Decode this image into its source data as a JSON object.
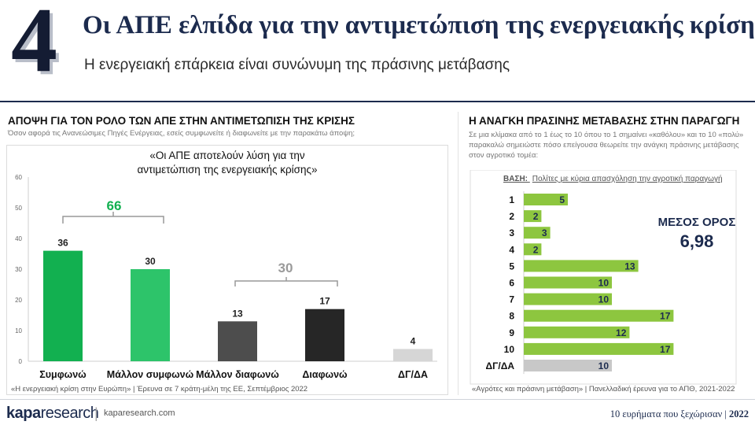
{
  "header": {
    "number": "4",
    "title": "Οι ΑΠΕ ελπίδα για την αντιμετώπιση της ενεργειακής κρίσης",
    "subtitle": "Η ενεργειακή επάρκεια είναι συνώνυμη της πράσινης μετάβασης"
  },
  "left": {
    "title": "ΑΠΟΨΗ ΓΙΑ ΤΟΝ ΡΟΛΟ ΤΩΝ ΑΠΕ ΣΤΗΝ ΑΝΤΙΜΕΤΩΠΙΣΗ ΤΗΣ ΚΡΙΣΗΣ",
    "subtitle": "Όσον αφορά τις Ανανεώσιμες Πηγές Ενέργειας, εσείς συμφωνείτε ή διαφωνείτε με την παρακάτω άποψη;",
    "quote_line1": "«Οι ΑΠΕ αποτελούν λύση για την",
    "quote_line2": "αντιμετώπιση της ενεργειακής κρίσης»",
    "source": "«Η ενεργειακή κρίση στην Ευρώπη» | Έρευνα σε 7 κράτη-μέλη της ΕΕ, Σεπτέμβριος 2022",
    "group_agree_total": "66",
    "group_disagree_total": "30"
  },
  "right": {
    "title": "Η ΑΝΑΓΚΗ ΠΡΑΣΙΝΗΣ ΜΕΤΑΒΑΣΗΣ ΣΤΗΝ ΠΑΡΑΓΩΓΗ",
    "subtitle": "Σε μια κλίμακα από το 1 έως το 10 όπου το 1 σημαίνει «καθόλου» και το 10 «πολύ» παρακαλώ σημειώστε πόσο επείγουσα θεωρείτε την ανάγκη πράσινης μετάβασης στον αγροτικό τομέα:",
    "base_label": "ΒΑΣΗ:",
    "base_text": "Πολίτες με κύρια απασχόληση την αγροτική παραγωγή",
    "mean_label": "ΜΕΣΟΣ ΟΡΟΣ",
    "mean_value": "6,98",
    "source": "«Αγρότες και πράσινη μετάβαση» | Πανελλαδική έρευνα για το ΑΠΘ, 2021-2022"
  },
  "footer": {
    "logo_bold": "kapa",
    "logo_light": "research",
    "separator": "|",
    "url": "kaparesearch.com",
    "tagline": "10 ευρήματα που ξεχώρισαν |",
    "year": "2022"
  },
  "chart_data": [
    {
      "type": "bar",
      "categories": [
        "Συμφωνώ",
        "Μάλλον συμφωνώ",
        "Μάλλον διαφωνώ",
        "Διαφωνώ",
        "ΔΓ/ΔΑ"
      ],
      "values": [
        36,
        30,
        13,
        17,
        4
      ],
      "colors": [
        "#12b050",
        "#2dc46a",
        "#4d4d4d",
        "#262626",
        "#d6d6d6"
      ],
      "ylim": [
        0,
        60
      ],
      "yticks": [
        0,
        10,
        20,
        30,
        40,
        50,
        60
      ],
      "grid": false,
      "title": "",
      "xlabel": "",
      "ylabel": ""
    },
    {
      "type": "bar",
      "orientation": "horizontal",
      "categories": [
        "1",
        "2",
        "3",
        "4",
        "5",
        "6",
        "7",
        "8",
        "9",
        "10",
        "ΔΓ/ΔΑ"
      ],
      "values": [
        5,
        2,
        3,
        2,
        13,
        10,
        10,
        17,
        12,
        17,
        10
      ],
      "colors": [
        "#8dc63f",
        "#8dc63f",
        "#8dc63f",
        "#8dc63f",
        "#8dc63f",
        "#8dc63f",
        "#8dc63f",
        "#8dc63f",
        "#8dc63f",
        "#8dc63f",
        "#c8c8c8"
      ],
      "xlim": [
        0,
        20
      ],
      "grid": false,
      "title": "",
      "xlabel": "",
      "ylabel": ""
    }
  ]
}
